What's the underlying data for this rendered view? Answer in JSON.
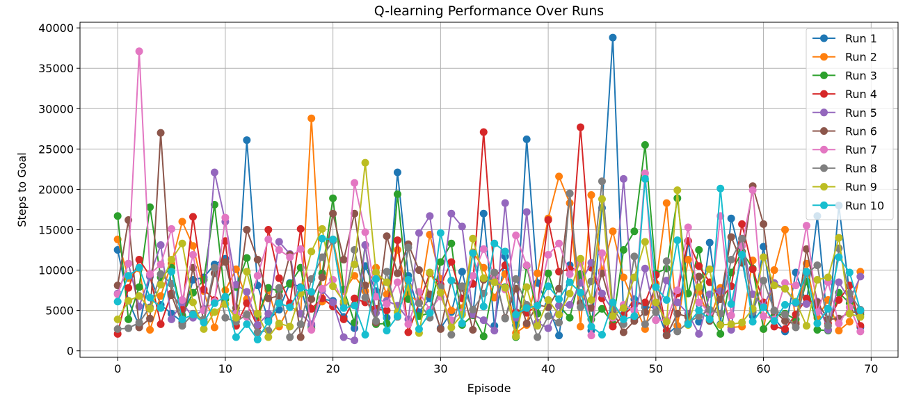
{
  "chart_data": {
    "type": "line",
    "title": "Q-learning Performance Over Runs",
    "xlabel": "Episode",
    "ylabel": "Steps to Goal",
    "xlim": [
      -3.5,
      72.5
    ],
    "ylim": [
      -800,
      40700
    ],
    "xticks": [
      0,
      10,
      20,
      30,
      40,
      50,
      60,
      70
    ],
    "yticks": [
      0,
      5000,
      10000,
      15000,
      20000,
      25000,
      30000,
      35000,
      40000
    ],
    "grid": true,
    "legend_position": "top-right",
    "marker": "circle",
    "x": [
      0,
      1,
      2,
      3,
      4,
      5,
      6,
      7,
      8,
      9,
      10,
      11,
      12,
      13,
      14,
      15,
      16,
      17,
      18,
      19,
      20,
      21,
      22,
      23,
      24,
      25,
      26,
      27,
      28,
      29,
      30,
      31,
      32,
      33,
      34,
      35,
      36,
      37,
      38,
      39,
      40,
      41,
      42,
      43,
      44,
      45,
      46,
      47,
      48,
      49,
      50,
      51,
      52,
      53,
      54,
      55,
      56,
      57,
      58,
      59,
      60,
      61,
      62,
      63,
      64,
      65,
      66,
      67,
      68,
      69
    ],
    "series": [
      {
        "name": "Run 1",
        "color": "#1f77b4",
        "values": [
          12500,
          6200,
          3100,
          9200,
          5700,
          4600,
          3600,
          8800,
          9100,
          10700,
          11400,
          4800,
          26100,
          8100,
          3800,
          5100,
          8400,
          7900,
          3100,
          6400,
          6200,
          4200,
          2800,
          10500,
          7400,
          4100,
          22100,
          9300,
          4800,
          6500,
          2800,
          4800,
          9800,
          4500,
          17000,
          3100,
          11700,
          3200,
          26200,
          8400,
          5600,
          1900,
          10600,
          9400,
          2500,
          17700,
          38800,
          4500,
          6400,
          5400,
          5400,
          2000,
          3100,
          13600,
          3600,
          13400,
          3300,
          16400,
          11200,
          4300,
          12900,
          4000,
          2400,
          9700,
          5900,
          16700,
          2600,
          18000,
          7100,
          2900
        ]
      },
      {
        "name": "Run 2",
        "color": "#ff7f0e",
        "values": [
          13800,
          9000,
          10200,
          2600,
          6800,
          10800,
          16000,
          13000,
          7400,
          2900,
          7500,
          10100,
          6400,
          4100,
          7500,
          3000,
          5600,
          4600,
          28800,
          6100,
          13800,
          7400,
          9300,
          7400,
          10300,
          7000,
          12500,
          7000,
          6000,
          14400,
          8900,
          5000,
          5300,
          12200,
          10300,
          6600,
          9500,
          2200,
          3200,
          9600,
          16400,
          21600,
          18300,
          3000,
          19300,
          9900,
          14800,
          9100,
          5800,
          2700,
          8300,
          18300,
          3100,
          11300,
          7300,
          3800,
          7800,
          2900,
          3000,
          11200,
          2700,
          10000,
          15000,
          3500,
          10800,
          4100,
          6300,
          2500,
          3600,
          9800
        ]
      },
      {
        "name": "Run 3",
        "color": "#2ca02c",
        "values": [
          16700,
          3900,
          7900,
          17800,
          9100,
          10300,
          4400,
          7200,
          8800,
          18100,
          6400,
          7900,
          11500,
          4300,
          7800,
          7400,
          8300,
          10300,
          2800,
          9600,
          18900,
          7600,
          3500,
          13100,
          3300,
          3400,
          19400,
          6400,
          4300,
          4700,
          11000,
          13300,
          3200,
          4400,
          1800,
          8800,
          7900,
          1700,
          10500,
          4600,
          9600,
          5600,
          4100,
          9500,
          3900,
          5200,
          3400,
          12500,
          14800,
          25500,
          9600,
          10200,
          18900,
          7100,
          12500,
          4300,
          2100,
          9700,
          12300,
          10200,
          2700,
          4300,
          4600,
          3900,
          8600,
          2600,
          2500,
          7200,
          5900,
          4500
        ]
      },
      {
        "name": "Run 4",
        "color": "#d62728",
        "values": [
          2100,
          7800,
          11300,
          9300,
          3300,
          7100,
          5200,
          16600,
          7600,
          6300,
          13600,
          3100,
          5900,
          3000,
          15000,
          9000,
          5900,
          15100,
          5200,
          6500,
          5500,
          3900,
          6500,
          6000,
          5200,
          5000,
          13700,
          2300,
          5900,
          9600,
          8200,
          11000,
          6500,
          8300,
          27100,
          9100,
          10600,
          4800,
          4700,
          5600,
          16200,
          9800,
          10100,
          27700,
          10300,
          6500,
          3000,
          4400,
          5700,
          6000,
          9400,
          2500,
          7100,
          13600,
          10500,
          8500,
          6400,
          8000,
          15700,
          10100,
          6000,
          3000,
          2700,
          4500,
          6500,
          5400,
          3400,
          6300,
          8100,
          3100
        ]
      },
      {
        "name": "Run 5",
        "color": "#9467bd",
        "values": [
          7100,
          10800,
          5500,
          9300,
          13100,
          3900,
          6000,
          4100,
          5200,
          22100,
          16000,
          8200,
          7300,
          3200,
          4600,
          13500,
          12000,
          4600,
          3300,
          7500,
          6000,
          1700,
          1300,
          13100,
          4700,
          6200,
          5600,
          3900,
          14600,
          16700,
          7200,
          17000,
          15400,
          4500,
          3800,
          2500,
          18300,
          4100,
          17200,
          3500,
          2800,
          5600,
          5700,
          8400,
          10900,
          7100,
          5000,
          21300,
          4000,
          10200,
          3800,
          8700,
          6000,
          4600,
          2100,
          7000,
          7400,
          2600,
          13900,
          7000,
          5500,
          8400,
          7700,
          5900,
          5800,
          6100,
          2600,
          8500,
          6300,
          9200
        ]
      },
      {
        "name": "Run 6",
        "color": "#8c564b",
        "values": [
          8100,
          16200,
          2900,
          4000,
          27000,
          6900,
          3400,
          10300,
          3600,
          9600,
          11000,
          5300,
          15000,
          11300,
          6500,
          6800,
          11900,
          1700,
          6400,
          9100,
          17000,
          11300,
          17000,
          8100,
          3500,
          14200,
          9600,
          13200,
          10000,
          7000,
          2700,
          8700,
          7800,
          2600,
          8800,
          9600,
          4100,
          7700,
          3400,
          5700,
          5400,
          7700,
          19500,
          5900,
          5300,
          9600,
          4900,
          2300,
          3700,
          4800,
          7900,
          1900,
          4600,
          4200,
          9200,
          3700,
          6400,
          14100,
          10900,
          20400,
          15700,
          4900,
          3700,
          3300,
          12600,
          6000,
          3900,
          4000,
          4800,
          4800
        ]
      },
      {
        "name": "Run 7",
        "color": "#e377c2",
        "values": [
          7000,
          10800,
          37100,
          9500,
          10700,
          15100,
          6300,
          11900,
          5000,
          6100,
          16500,
          4600,
          4200,
          9300,
          13800,
          12500,
          11600,
          12600,
          2600,
          7700,
          8800,
          5800,
          20800,
          14700,
          6700,
          5800,
          8500,
          3300,
          7300,
          5100,
          6700,
          3800,
          4800,
          9300,
          12600,
          9300,
          7600,
          14300,
          10600,
          5600,
          11900,
          13300,
          9500,
          10900,
          1900,
          12100,
          4100,
          5700,
          5000,
          22000,
          3800,
          3800,
          7500,
          15300,
          6000,
          4800,
          16700,
          4400,
          13000,
          19900,
          4300,
          3900,
          8400,
          8100,
          15500,
          4800,
          8500,
          3400,
          5400,
          2400
        ]
      },
      {
        "name": "Run 8",
        "color": "#7f7f7f",
        "values": [
          2700,
          2800,
          3500,
          5400,
          9500,
          8300,
          3100,
          4600,
          3900,
          10300,
          4100,
          3600,
          4500,
          2300,
          2500,
          7800,
          1700,
          3300,
          8900,
          11600,
          13600,
          5800,
          12500,
          6600,
          3700,
          9800,
          4200,
          12800,
          5900,
          4100,
          7900,
          2000,
          8000,
          5100,
          7100,
          9700,
          4000,
          8900,
          5700,
          1700,
          4300,
          3500,
          19500,
          5400,
          8600,
          21000,
          5300,
          3300,
          11700,
          3300,
          4800,
          11100,
          2400,
          3500,
          4300,
          5100,
          4600,
          11300,
          13900,
          4800,
          8700,
          5000,
          4500,
          2900,
          9600,
          10600,
          3100,
          12700,
          7100,
          5100
        ]
      },
      {
        "name": "Run 9",
        "color": "#bcbd22",
        "values": [
          3900,
          6200,
          6800,
          5200,
          8200,
          11300,
          13300,
          6000,
          2700,
          4800,
          5800,
          4100,
          9800,
          4600,
          1700,
          3400,
          3000,
          7100,
          12300,
          15100,
          8000,
          6100,
          10700,
          23300,
          9700,
          8500,
          4800,
          7900,
          2200,
          9700,
          7200,
          2900,
          4500,
          13900,
          9000,
          8500,
          7800,
          1800,
          7900,
          3100,
          6300,
          4500,
          7100,
          11400,
          6300,
          18800,
          4300,
          5300,
          9100,
          13500,
          6000,
          3600,
          19900,
          3200,
          7900,
          10100,
          3200,
          3300,
          3500,
          5200,
          11600,
          8100,
          7700,
          6100,
          3100,
          8800,
          9100,
          14000,
          4600,
          4200
        ]
      },
      {
        "name": "Run 10",
        "color": "#17becf",
        "values": [
          6100,
          9300,
          10300,
          6600,
          5300,
          9800,
          3900,
          4500,
          3500,
          5900,
          6700,
          1700,
          3300,
          1400,
          3600,
          5900,
          5400,
          7800,
          7300,
          13900,
          13800,
          5300,
          5600,
          2000,
          8900,
          2500,
          4300,
          8800,
          2700,
          4700,
          14600,
          8700,
          3400,
          12100,
          5500,
          13300,
          12300,
          4500,
          5300,
          5600,
          8000,
          6400,
          8500,
          7200,
          3000,
          2000,
          6000,
          3900,
          4300,
          21300,
          7900,
          6300,
          13700,
          3300,
          5000,
          3900,
          20100,
          5800,
          11900,
          3600,
          5400,
          3700,
          5700,
          6000,
          9800,
          3400,
          5200,
          11600,
          9700,
          5000
        ]
      }
    ]
  }
}
